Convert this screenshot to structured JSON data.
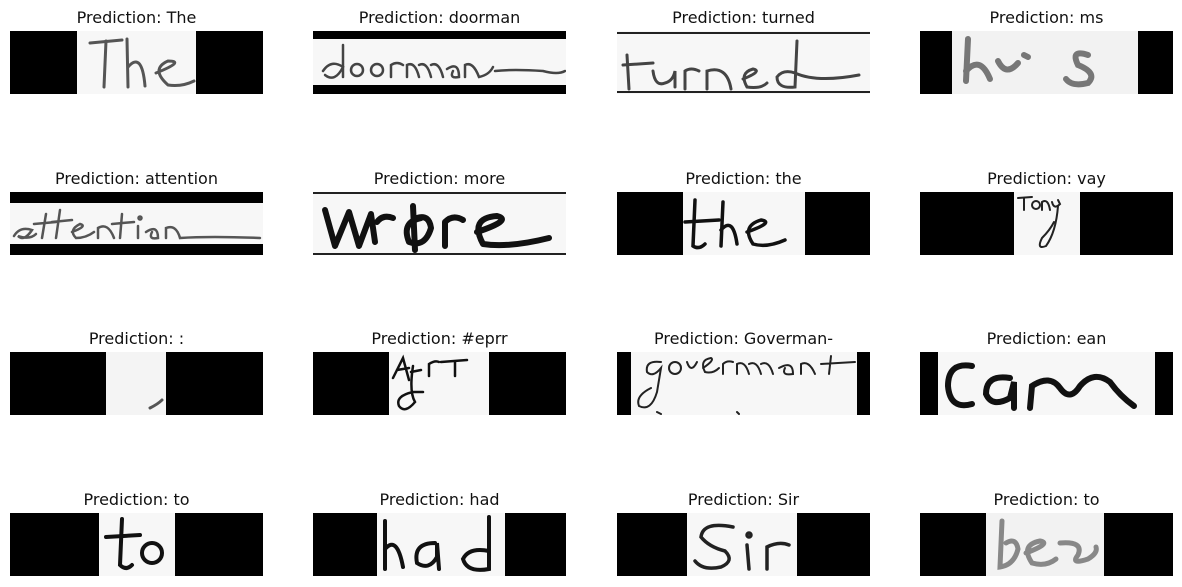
{
  "figure": {
    "panels": [
      {
        "title": "Prediction: The",
        "handwriting": "The"
      },
      {
        "title": "Prediction: doorman",
        "handwriting": "doorman"
      },
      {
        "title": "Prediction: turned",
        "handwriting": "turned"
      },
      {
        "title": "Prediction: ms",
        "handwriting": "his"
      },
      {
        "title": "Prediction: attention",
        "handwriting": "attention"
      },
      {
        "title": "Prediction: more",
        "handwriting": "more"
      },
      {
        "title": "Prediction: the",
        "handwriting": "the"
      },
      {
        "title": "Prediction: vay",
        "handwriting": "Tony"
      },
      {
        "title": "Prediction: :",
        "handwriting": ""
      },
      {
        "title": "Prediction: #eprr",
        "handwriting": "Afri"
      },
      {
        "title": "Prediction: Goverman-",
        "handwriting": "government"
      },
      {
        "title": "Prediction: ean",
        "handwriting": "can"
      },
      {
        "title": "Prediction: to",
        "handwriting": "to"
      },
      {
        "title": "Prediction: had",
        "handwriting": "had"
      },
      {
        "title": "Prediction: Sir",
        "handwriting": "Sir"
      },
      {
        "title": "Prediction: to",
        "handwriting": "to"
      }
    ]
  }
}
